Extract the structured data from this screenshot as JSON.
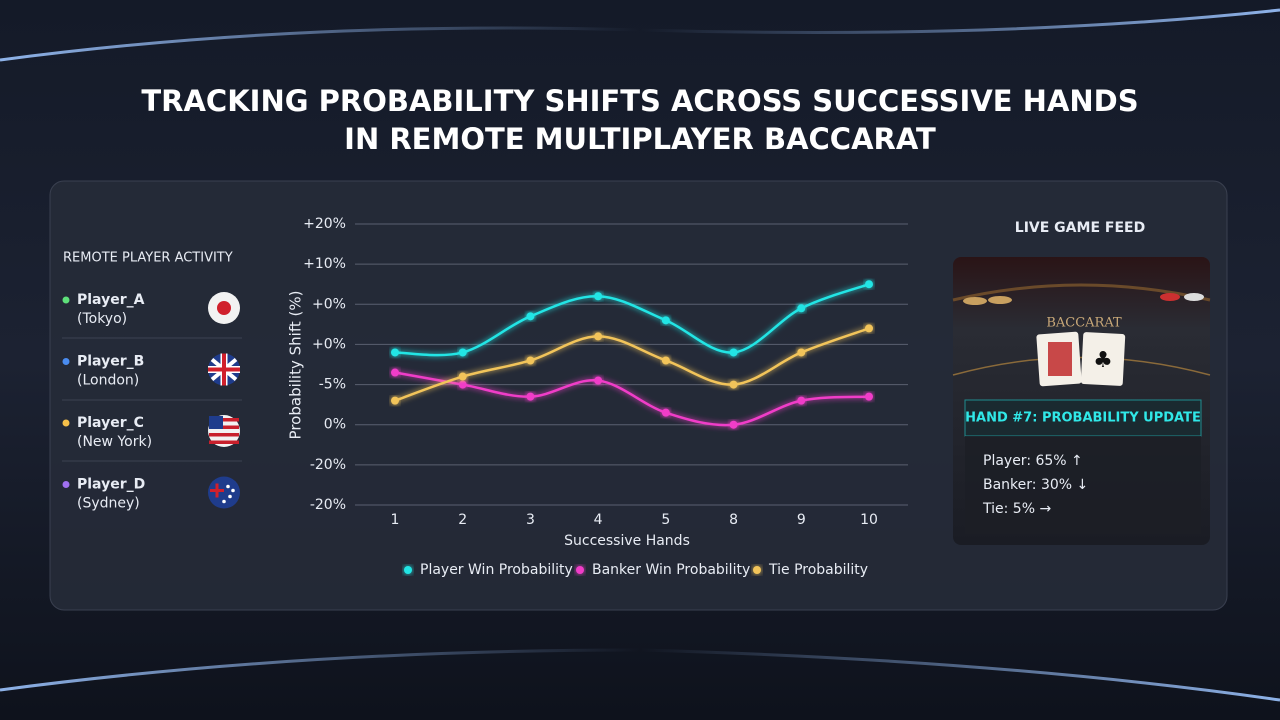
{
  "title_lines": [
    "TRACKING PROBABILITY SHIFTS ACROSS SUCCESSIVE HANDS",
    "IN REMOTE MULTIPLAYER BACCARAT"
  ],
  "sidebar": {
    "heading": "REMOTE PLAYER ACTIVITY",
    "players": [
      {
        "name": "Player_A",
        "location": "(Tokyo)",
        "color": "#5ee07a"
      },
      {
        "name": "Player_B",
        "location": "(London)",
        "color": "#4a8cf0"
      },
      {
        "name": "Player_C",
        "location": "(New York)",
        "color": "#f5c04a"
      },
      {
        "name": "Player_D",
        "location": "(Sydney)",
        "color": "#a070f0"
      }
    ]
  },
  "chart_data": {
    "type": "line",
    "y_label": "Probability Shift (%)",
    "x_label": "Successive Hands",
    "categories": [
      "1",
      "2",
      "3",
      "4",
      "5",
      "8",
      "9",
      "10"
    ],
    "series": [
      {
        "name": "Player Win Probability",
        "color": "#22e5e5",
        "values": [
          3.8,
          3.8,
          4.7,
          5.2,
          4.6,
          3.8,
          4.9,
          5.5
        ]
      },
      {
        "name": "Banker Win Probability",
        "color": "#f03cc8",
        "values": [
          3.3,
          3.0,
          2.7,
          3.1,
          2.3,
          2.0,
          2.6,
          2.7
        ]
      },
      {
        "name": "Tie Probability",
        "color": "#f2c45a",
        "values": [
          2.6,
          3.2,
          3.6,
          4.2,
          3.6,
          3.0,
          3.8,
          4.4
        ]
      }
    ],
    "ylim": [
      0,
      7
    ],
    "yticks": [
      {
        "value": 7,
        "label": "+20%"
      },
      {
        "value": 6,
        "label": "+10%"
      },
      {
        "value": 5,
        "label": "+0%"
      },
      {
        "value": 4,
        "label": "+0%"
      },
      {
        "value": 3,
        "label": "-5%"
      },
      {
        "value": 2,
        "label": "0%"
      },
      {
        "value": 1,
        "label": "-20%"
      },
      {
        "value": 0,
        "label": "-20%"
      }
    ],
    "grid": true,
    "legend": "bottom"
  },
  "feed": {
    "heading": "LIVE GAME FEED",
    "table_text": "BACCARAT",
    "card_title": "HAND #7: PROBABILITY UPDATE",
    "lines": [
      "Player: 65% ↑",
      "Banker: 30% ↓",
      "Tie: 5% →"
    ]
  }
}
